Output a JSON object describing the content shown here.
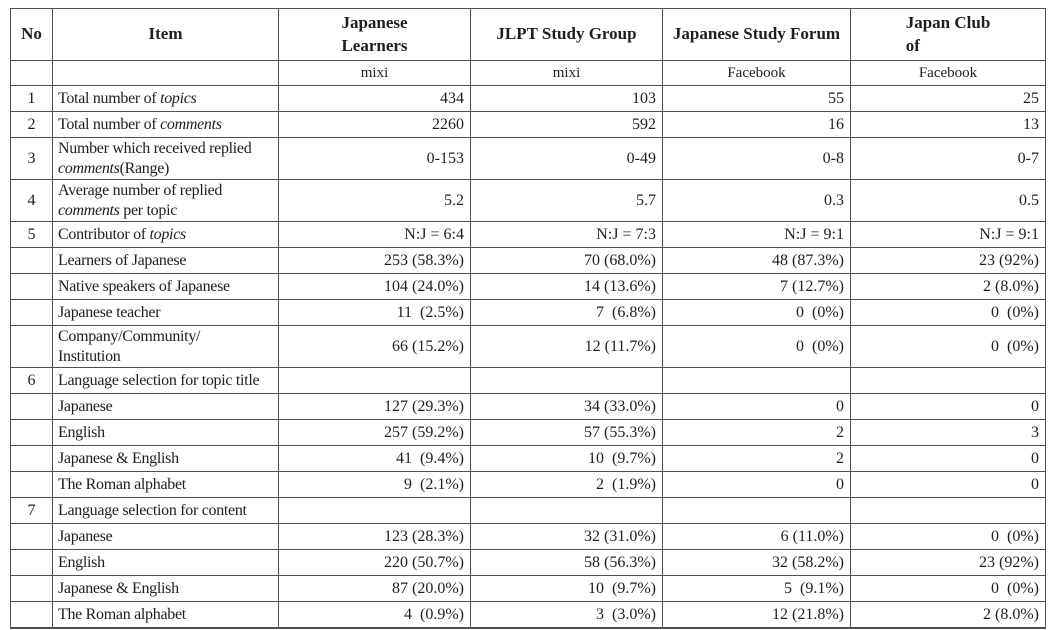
{
  "table": {
    "columns": [
      {
        "id": "no",
        "label": "No",
        "sub": ""
      },
      {
        "id": "item",
        "label": "Item",
        "sub": ""
      },
      {
        "id": "japanese-learners",
        "label": "Japanese\nLearners",
        "sub": "mixi"
      },
      {
        "id": "jlpt-study-group",
        "label": "JLPT Study Group",
        "sub": "mixi"
      },
      {
        "id": "japanese-study-forum",
        "label": "Japanese Study Forum",
        "sub": "Facebook"
      },
      {
        "id": "japan-club-of",
        "label": "Japan Club\nof",
        "sub": "Facebook"
      }
    ],
    "rows": [
      {
        "no": "1",
        "tall": false,
        "item": [
          {
            "t": "Total number of "
          },
          {
            "t": "topics",
            "i": true
          }
        ],
        "values": [
          "434",
          "103",
          "55",
          "25"
        ]
      },
      {
        "no": "2",
        "tall": false,
        "item": [
          {
            "t": "Total number of "
          },
          {
            "t": "comments",
            "i": true
          }
        ],
        "values": [
          "2260",
          "592",
          "16",
          "13"
        ]
      },
      {
        "no": "3",
        "tall": true,
        "item": [
          {
            "t": "Number which received replied"
          },
          {
            "br": true
          },
          {
            "t": "comments",
            "i": true
          },
          {
            "t": "(Range)"
          }
        ],
        "values": [
          "0-153",
          "0-49",
          "0-8",
          "0-7"
        ]
      },
      {
        "no": "4",
        "tall": true,
        "item": [
          {
            "t": "Average number of replied"
          },
          {
            "br": true
          },
          {
            "t": "comments",
            "i": true
          },
          {
            "t": " per topic"
          }
        ],
        "values": [
          "5.2",
          "5.7",
          "0.3",
          "0.5"
        ]
      },
      {
        "no": "5",
        "tall": false,
        "item": [
          {
            "t": "Contributor of "
          },
          {
            "t": "topics",
            "i": true
          }
        ],
        "values": [
          "N:J = 6:4",
          "N:J = 7:3",
          "N:J = 9:1",
          "N:J = 9:1"
        ]
      },
      {
        "no": "",
        "tall": false,
        "item": [
          {
            "t": "Learners of Japanese"
          }
        ],
        "values": [
          "253 (58.3%)",
          "70 (68.0%)",
          "48 (87.3%)",
          "23 (92%)"
        ]
      },
      {
        "no": "",
        "tall": false,
        "item": [
          {
            "t": "Native speakers of Japanese"
          }
        ],
        "values": [
          "104 (24.0%)",
          "14 (13.6%)",
          "7 (12.7%)",
          "2 (8.0%)"
        ]
      },
      {
        "no": "",
        "tall": false,
        "item": [
          {
            "t": "Japanese teacher"
          }
        ],
        "values": [
          "11  (2.5%)",
          "7  (6.8%)",
          "0  (0%)",
          "0  (0%)"
        ]
      },
      {
        "no": "",
        "tall": true,
        "item": [
          {
            "t": "Company/Community/"
          },
          {
            "br": true
          },
          {
            "t": "Institution"
          }
        ],
        "values": [
          "66 (15.2%)",
          "12 (11.7%)",
          "0  (0%)",
          "0  (0%)"
        ]
      },
      {
        "no": "6",
        "tall": false,
        "item": [
          {
            "t": "Language selection for topic title"
          }
        ],
        "values": [
          "",
          "",
          "",
          ""
        ]
      },
      {
        "no": "",
        "tall": false,
        "item": [
          {
            "t": "Japanese"
          }
        ],
        "values": [
          "127 (29.3%)",
          "34 (33.0%)",
          "0",
          "0"
        ]
      },
      {
        "no": "",
        "tall": false,
        "item": [
          {
            "t": "English"
          }
        ],
        "values": [
          "257 (59.2%)",
          "57 (55.3%)",
          "2",
          "3"
        ]
      },
      {
        "no": "",
        "tall": false,
        "item": [
          {
            "t": "Japanese & English"
          }
        ],
        "values": [
          "41  (9.4%)",
          "10  (9.7%)",
          "2",
          "0"
        ]
      },
      {
        "no": "",
        "tall": false,
        "item": [
          {
            "t": "The Roman alphabet"
          }
        ],
        "values": [
          "9  (2.1%)",
          "2  (1.9%)",
          "0",
          "0"
        ]
      },
      {
        "no": "7",
        "tall": false,
        "item": [
          {
            "t": "Language selection for content"
          }
        ],
        "values": [
          "",
          "",
          "",
          ""
        ]
      },
      {
        "no": "",
        "tall": false,
        "item": [
          {
            "t": "Japanese"
          }
        ],
        "values": [
          "123 (28.3%)",
          "32 (31.0%)",
          "6 (11.0%)",
          "0  (0%)"
        ]
      },
      {
        "no": "",
        "tall": false,
        "item": [
          {
            "t": "English"
          }
        ],
        "values": [
          "220 (50.7%)",
          "58 (56.3%)",
          "32 (58.2%)",
          "23 (92%)"
        ]
      },
      {
        "no": "",
        "tall": false,
        "item": [
          {
            "t": "Japanese & English"
          }
        ],
        "values": [
          "87 (20.0%)",
          "10  (9.7%)",
          "5  (9.1%)",
          "0  (0%)"
        ]
      },
      {
        "no": "",
        "tall": false,
        "item": [
          {
            "t": "The Roman alphabet"
          }
        ],
        "values": [
          "4  (0.9%)",
          "3  (3.0%)",
          "12 (21.8%)",
          "2 (8.0%)"
        ]
      }
    ]
  }
}
